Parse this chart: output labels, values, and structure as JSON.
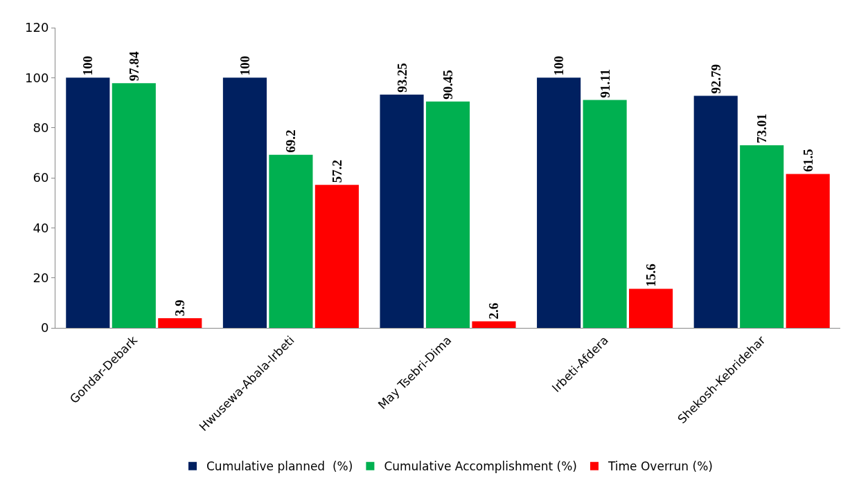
{
  "chart_data": {
    "type": "bar",
    "categories": [
      "Gondar-Debark",
      "Hwusewa-Abala-Irbeti",
      "May Tsebri-Dima",
      "Irbeti-Afdera",
      "Shekosh-Kebridehar"
    ],
    "series": [
      {
        "name": "Cumulative planned  (%)",
        "color": "#002060",
        "values": [
          100,
          100,
          93.25,
          100,
          92.79
        ]
      },
      {
        "name": "Cumulative Accomplishment (%)",
        "color": "#00b050",
        "values": [
          97.84,
          69.2,
          90.45,
          91.11,
          73.01
        ]
      },
      {
        "name": "Time Overrun (%)",
        "color": "#ff0000",
        "values": [
          3.9,
          57.2,
          2.6,
          15.6,
          61.5
        ]
      }
    ],
    "ylim": [
      0,
      120
    ],
    "yticks": [
      0,
      20,
      40,
      60,
      80,
      100,
      120
    ],
    "legend": "bottom",
    "data_labels": true
  }
}
